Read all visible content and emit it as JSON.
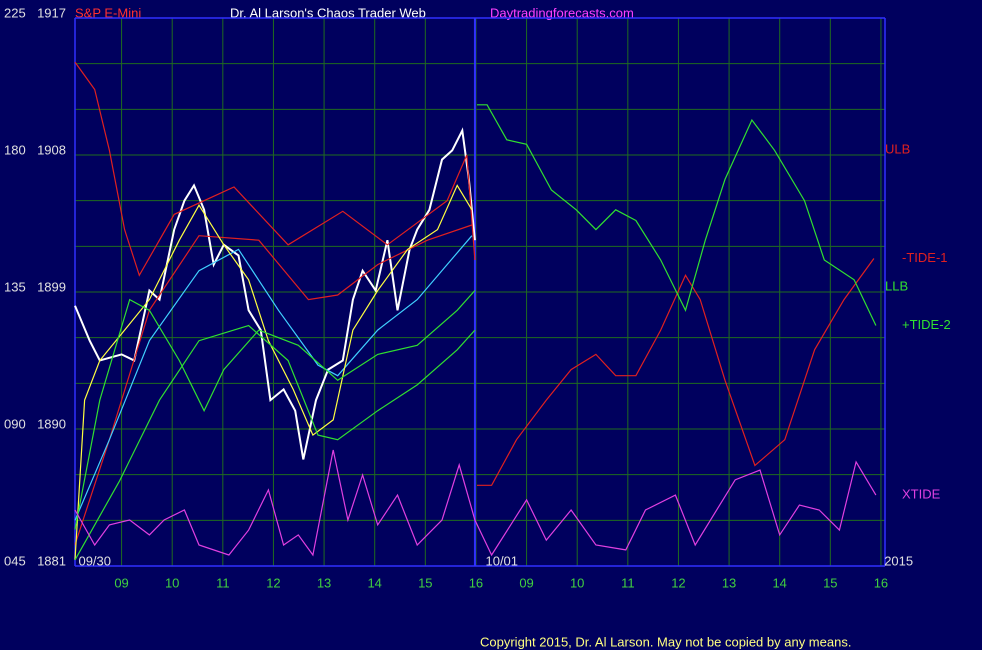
{
  "chart_data": {
    "type": "line",
    "title": "Dr. Al Larson's Chaos Trader Web",
    "subtitle": "S&P E-Mini",
    "site": "Daytradingforecasts.com",
    "copyright": "Copyright 2015, Dr. Al Larson. May not be copied by any means.",
    "background": "#00005e",
    "grid": true,
    "grid_color": "#1f6b1f",
    "frame_color": "#3030ff",
    "xlim": [
      0.08,
      16.08
    ],
    "ylim": [
      1881,
      1917
    ],
    "y2lim": [
      45,
      225
    ],
    "xticks": [
      {
        "value": 1,
        "label": "09"
      },
      {
        "value": 2,
        "label": "10"
      },
      {
        "value": 3,
        "label": "11"
      },
      {
        "value": 4,
        "label": "12"
      },
      {
        "value": 5,
        "label": "13"
      },
      {
        "value": 6,
        "label": "14"
      },
      {
        "value": 7,
        "label": "15"
      },
      {
        "value": 8,
        "label": "16"
      },
      {
        "value": 9,
        "label": "09"
      },
      {
        "value": 10,
        "label": "10"
      },
      {
        "value": 11,
        "label": "11"
      },
      {
        "value": 12,
        "label": "12"
      },
      {
        "value": 13,
        "label": "13"
      },
      {
        "value": 14,
        "label": "14"
      },
      {
        "value": 15,
        "label": "15"
      },
      {
        "value": 16,
        "label": "16"
      }
    ],
    "yticks": [
      1917,
      1908,
      1899,
      1890,
      1881
    ],
    "ygrid": [
      1914,
      1911,
      1905,
      1902,
      1896,
      1893,
      1887,
      1884
    ],
    "y2ticks": [
      225,
      180,
      135,
      {
        "value": 90,
        "label": "090"
      },
      {
        "value": 45,
        "label": "045"
      }
    ],
    "day_divider": 7.98,
    "annotations": [
      {
        "text": "09/30",
        "x": 0.47
      },
      {
        "text": "10/01",
        "x": 8.51
      },
      {
        "text": "2015",
        "x": 16.35
      }
    ],
    "series": [
      {
        "color": "#ffffff",
        "x": [
          0.08,
          0.37,
          0.57,
          1,
          1.25,
          1.55,
          1.75,
          2.04,
          2.24,
          2.43,
          2.63,
          2.82,
          3.02,
          3.31,
          3.51,
          3.75,
          3.94,
          4.2,
          4.43,
          4.59,
          4.84,
          5.08,
          5.37,
          5.57,
          5.76,
          6.02,
          6.25,
          6.45,
          6.69,
          6.84,
          7.08,
          7.33,
          7.53,
          7.73,
          7.86,
          7.98
        ],
        "values": [
          1898.1,
          1895.8,
          1894.5,
          1894.9,
          1894.5,
          1899.1,
          1898.5,
          1903.1,
          1905.0,
          1906.0,
          1904.4,
          1900.8,
          1902.1,
          1901.4,
          1897.8,
          1896.5,
          1891.9,
          1892.6,
          1891.2,
          1888.0,
          1891.9,
          1893.9,
          1894.5,
          1898.5,
          1900.4,
          1899.1,
          1902.4,
          1897.8,
          1901.8,
          1903.1,
          1904.4,
          1907.7,
          1908.3,
          1909.6,
          1906.4,
          1902.4
        ]
      },
      {
        "name": "ULB",
        "color": "#e02020",
        "x": [
          0.08,
          0.47,
          0.76,
          1.06,
          1.35,
          2.04,
          3.22,
          4.29,
          5.37,
          6.25,
          7.43,
          7.82,
          7.98
        ],
        "values": [
          1914.1,
          1912.3,
          1908.3,
          1903.1,
          1900.1,
          1904.1,
          1905.9,
          1902.1,
          1904.3,
          1902.1,
          1905.0,
          1908.0,
          1901.1
        ]
      },
      {
        "color": "#e02020",
        "x": [
          0.08,
          0.76,
          1.55,
          2.53,
          3.71,
          4.69,
          5.27,
          6.06,
          7.04,
          7.92
        ],
        "values": [
          1882.4,
          1889.3,
          1897.8,
          1902.7,
          1902.4,
          1898.5,
          1898.8,
          1900.8,
          1902.4,
          1903.4
        ]
      },
      {
        "color": "#40d0ff",
        "x": [
          0.08,
          0.76,
          1.55,
          2.53,
          3.31,
          4.1,
          4.88,
          5.27,
          6.06,
          6.84,
          7.43,
          7.92
        ],
        "values": [
          1884.0,
          1889.3,
          1895.8,
          1900.4,
          1901.8,
          1897.8,
          1894.2,
          1893.5,
          1896.5,
          1898.5,
          1900.8,
          1902.7
        ]
      },
      {
        "color": "#ffff40",
        "x": [
          0.08,
          0.27,
          0.57,
          1.06,
          1.55,
          2.14,
          2.53,
          3.02,
          3.51,
          3.9,
          4.39,
          4.78,
          5.18,
          5.57,
          6.06,
          6.65,
          7.24,
          7.63,
          7.92
        ],
        "values": [
          1881.4,
          1891.9,
          1894.5,
          1896.5,
          1898.5,
          1902.4,
          1904.7,
          1902.1,
          1899.8,
          1895.8,
          1892.6,
          1889.6,
          1890.6,
          1896.5,
          1899.1,
          1901.8,
          1903.1,
          1906.0,
          1904.4
        ]
      },
      {
        "name": "LLB",
        "color": "#30e030",
        "x": [
          0.08,
          0.57,
          1.16,
          1.55,
          2.14,
          2.63,
          3.02,
          3.71,
          4.49,
          5.27,
          6.06,
          6.84,
          7.63,
          7.98
        ],
        "values": [
          1883.4,
          1891.9,
          1898.5,
          1897.8,
          1894.5,
          1891.2,
          1893.9,
          1896.5,
          1895.5,
          1893.2,
          1894.9,
          1895.5,
          1897.8,
          1899.1
        ]
      },
      {
        "color": "#30e030",
        "x": [
          0.08,
          0.96,
          1.75,
          2.53,
          3.51,
          4.29,
          4.88,
          5.27,
          6.06,
          6.84,
          7.63,
          7.98
        ],
        "values": [
          1881.4,
          1886.6,
          1891.9,
          1895.8,
          1896.8,
          1894.5,
          1889.6,
          1889.3,
          1891.2,
          1892.9,
          1895.2,
          1896.5
        ]
      },
      {
        "name": "-TIDE-1",
        "color": "#e02020",
        "x": [
          8.02,
          8.31,
          8.8,
          9.39,
          9.88,
          10.37,
          10.76,
          11.16,
          11.65,
          12.14,
          12.43,
          12.92,
          13.51,
          14.1,
          14.69,
          15.27,
          15.86
        ],
        "values": [
          1886.3,
          1886.3,
          1889.3,
          1891.9,
          1893.9,
          1894.9,
          1893.5,
          1893.5,
          1896.5,
          1900.1,
          1898.5,
          1893.2,
          1887.6,
          1889.3,
          1895.2,
          1898.5,
          1901.2
        ]
      },
      {
        "name": "+TIDE-2",
        "color": "#30e030",
        "x": [
          8.02,
          8.22,
          8.61,
          9,
          9.49,
          9.98,
          10.37,
          10.76,
          11.16,
          11.65,
          12.14,
          12.53,
          12.92,
          13.45,
          13.9,
          14.49,
          14.88,
          15.47,
          15.9
        ],
        "values": [
          1911.3,
          1911.3,
          1909.0,
          1908.7,
          1905.7,
          1904.4,
          1903.1,
          1904.4,
          1903.7,
          1901.1,
          1897.8,
          1902.4,
          1906.4,
          1910.3,
          1908.3,
          1905.0,
          1901.1,
          1899.8,
          1896.8
        ]
      },
      {
        "name": "XTIDE",
        "color": "#e040e0",
        "axis": "y2",
        "x": [
          0.08,
          0.47,
          0.76,
          1.16,
          1.55,
          1.84,
          2.24,
          2.53,
          3.12,
          3.51,
          3.9,
          4.2,
          4.49,
          4.78,
          5.18,
          5.47,
          5.76,
          6.06,
          6.45,
          6.84,
          7.33,
          7.67,
          7.98,
          8.31,
          9,
          9.39,
          9.88,
          10.37,
          10.96,
          11.35,
          11.94,
          12.33,
          13.12,
          13.61,
          14,
          14.39,
          14.78,
          15.18,
          15.51,
          15.9
        ],
        "values": [
          63.4,
          51.9,
          58.5,
          60.1,
          55.2,
          60.1,
          63.4,
          51.9,
          48.6,
          56.8,
          70.0,
          51.9,
          55.2,
          48.6,
          83.1,
          60.1,
          74.9,
          58.5,
          68.3,
          51.9,
          60.1,
          78.2,
          60.1,
          48.6,
          66.7,
          53.5,
          63.4,
          51.9,
          50.3,
          63.4,
          68.3,
          51.9,
          73.3,
          76.5,
          55.2,
          65.0,
          63.4,
          56.8,
          79.2,
          68.3
        ]
      }
    ]
  }
}
